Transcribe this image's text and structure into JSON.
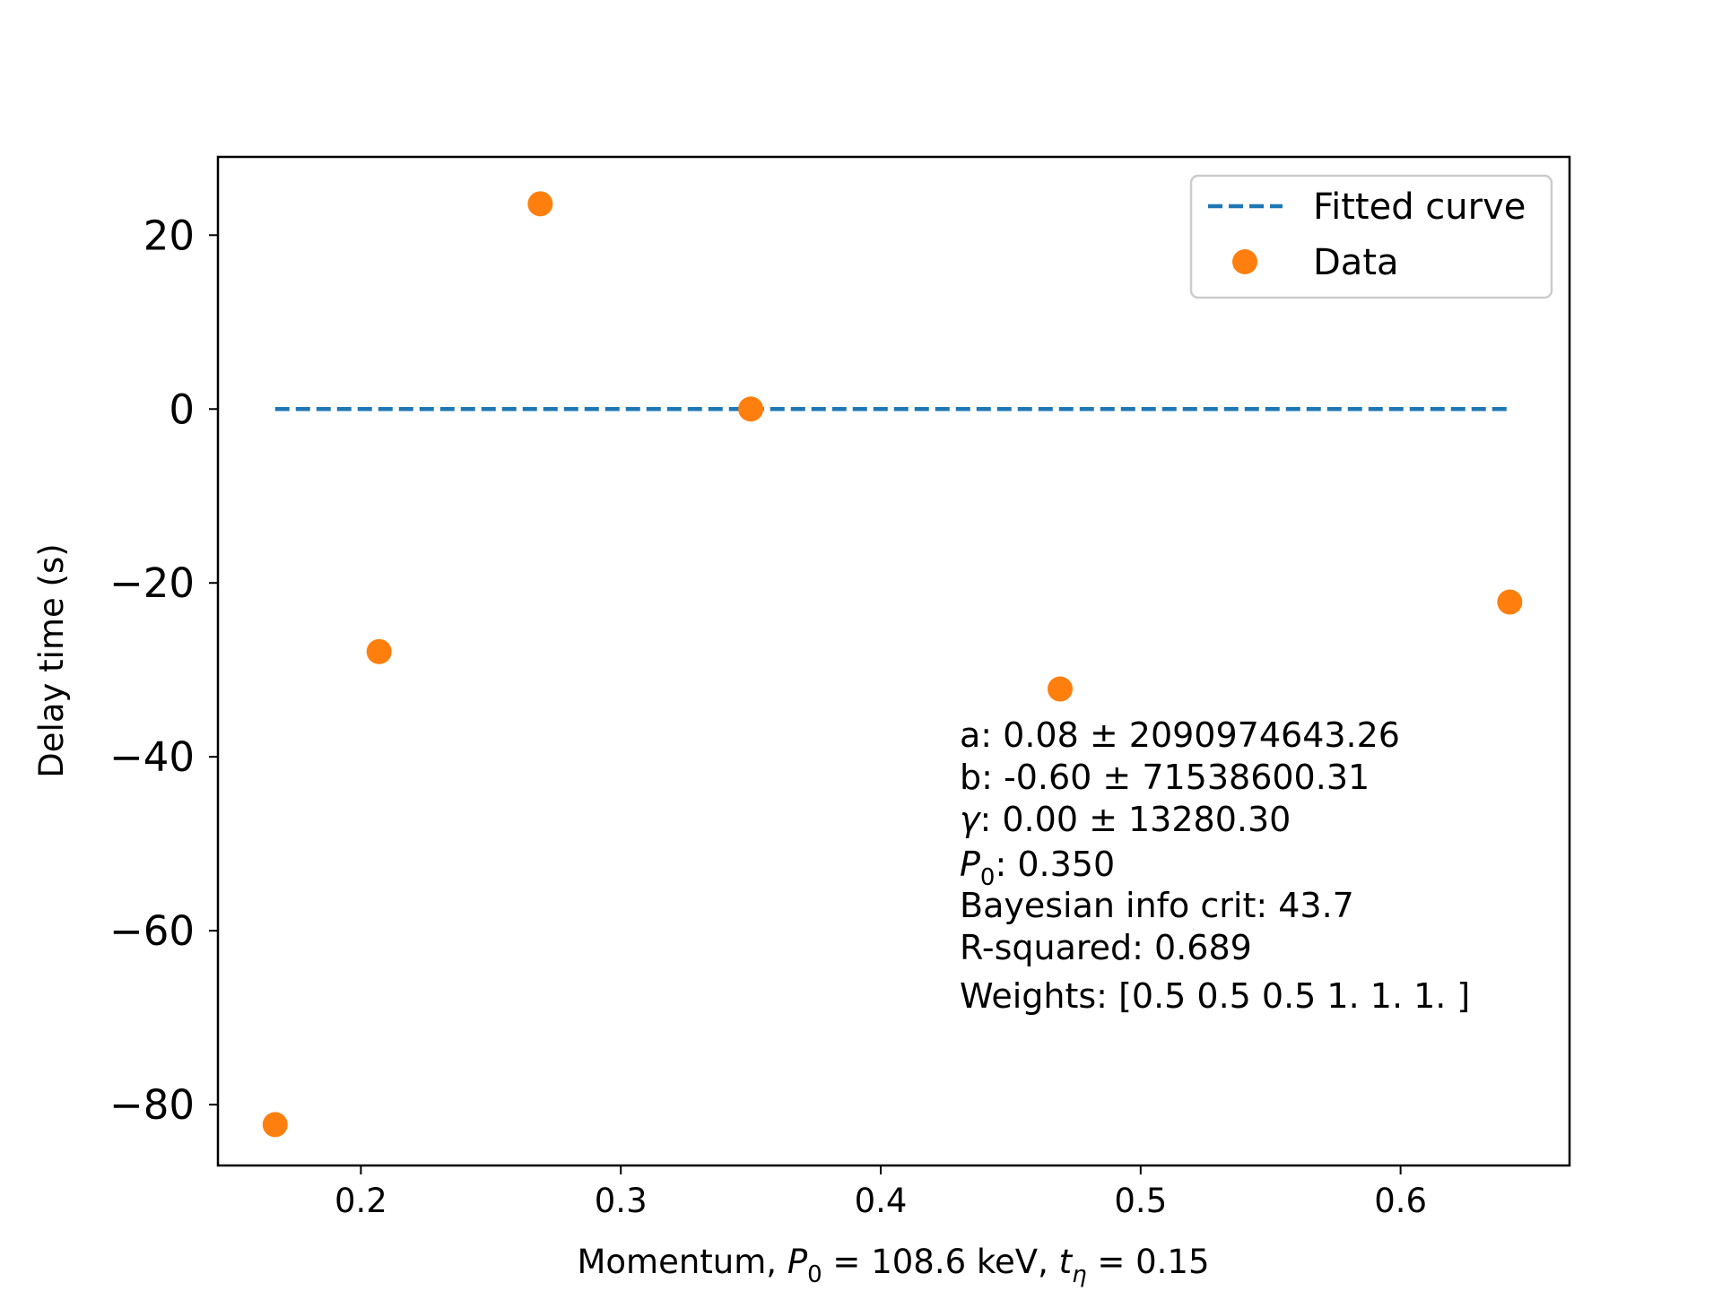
{
  "chart_data": {
    "type": "scatter",
    "title": "",
    "xlabel": "Momentum, P0 = 108.6 keV, tη = 0.15",
    "xlabel_parts": {
      "prefix": "Momentum, ",
      "p0": "P",
      "p0_sub": "0",
      "p0_val": " = 108.6 keV, ",
      "t": "t",
      "t_sub": "η",
      "t_val": " = 0.15"
    },
    "ylabel": "Delay time (s)",
    "xlim": [
      0.145,
      0.665
    ],
    "ylim": [
      -87,
      29
    ],
    "x_ticks": [
      {
        "value": 0.2,
        "label": "0.2"
      },
      {
        "value": 0.3,
        "label": "0.3"
      },
      {
        "value": 0.4,
        "label": "0.4"
      },
      {
        "value": 0.5,
        "label": "0.5"
      },
      {
        "value": 0.6,
        "label": "0.6"
      }
    ],
    "y_ticks": [
      {
        "value": 20,
        "label": "20"
      },
      {
        "value": 0,
        "label": "0"
      },
      {
        "value": -20,
        "label": "−20"
      },
      {
        "value": -40,
        "label": "−40"
      },
      {
        "value": -60,
        "label": "−60"
      },
      {
        "value": -80,
        "label": "−80"
      }
    ],
    "grid": false,
    "legend_position": "top-right",
    "series": [
      {
        "name": "Fitted curve",
        "kind": "line",
        "style": "dashed",
        "color": "#1f77b4",
        "x": [
          0.167,
          0.641
        ],
        "y": [
          0,
          0
        ]
      },
      {
        "name": "Data",
        "kind": "scatter",
        "color": "#ff7f0e",
        "x": [
          0.167,
          0.207,
          0.269,
          0.35,
          0.469,
          0.642
        ],
        "y": [
          -82.3,
          -27.9,
          23.6,
          0.0,
          -32.2,
          -22.2
        ]
      }
    ],
    "annotations": [
      {
        "pre": "a: 0.08 ± 2090974643.26"
      },
      {
        "pre": "b: -0.60 ± 71538600.31"
      },
      {
        "italic": "γ",
        "post": ": 0.00 ± 13280.30"
      },
      {
        "italic": "P",
        "sub": "0",
        "post": ": 0.350"
      },
      {
        "pre": "Bayesian info crit: 43.7"
      },
      {
        "pre": "R-squared: 0.689"
      },
      {
        "pre": "Weights: [0.5 0.5 0.5 1.  1.  1. ]"
      }
    ]
  }
}
